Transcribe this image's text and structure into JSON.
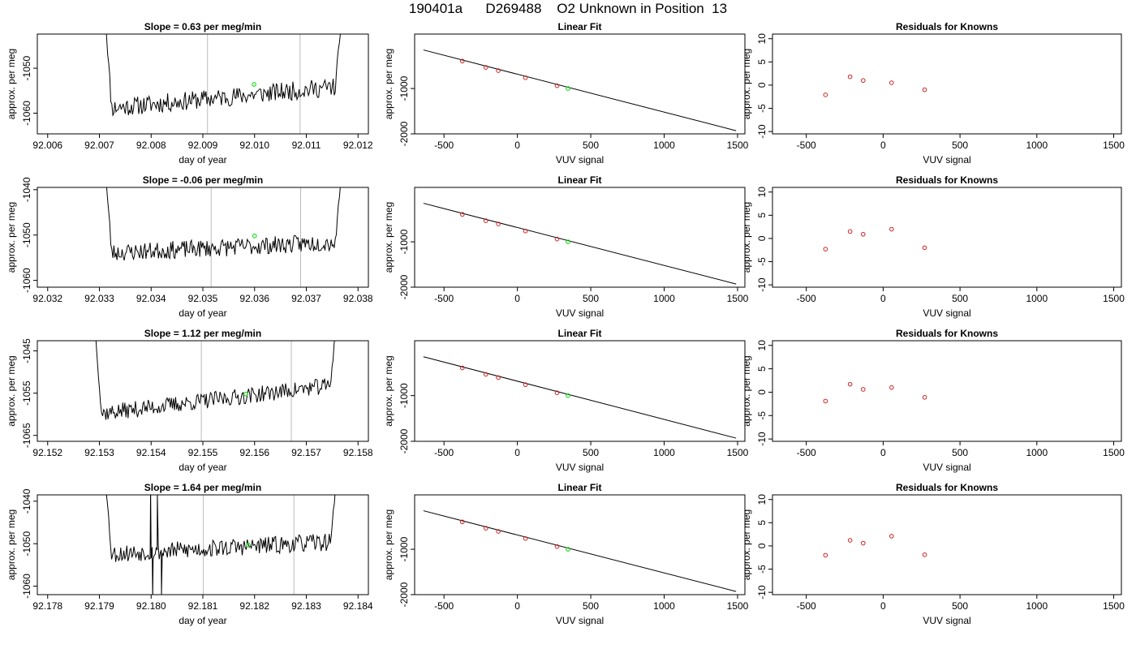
{
  "figure": {
    "title": "190401a      D269488    O2 Unknown in Position  13"
  },
  "chart_data": [
    {
      "type": "line",
      "panel": "time-series",
      "row": 1,
      "title": "Slope =  0.63  per meg/min",
      "xlabel": "day of year",
      "ylabel": "approx. per meg",
      "xlim": [
        92.0058,
        92.0122
      ],
      "ylim": [
        -1064.6,
        -1042.4
      ],
      "xticks": [
        92.006,
        92.007,
        92.008,
        92.009,
        92.01,
        92.011,
        92.012
      ],
      "xtick_labels": [
        "92.006",
        "92.007",
        "92.008",
        "92.009",
        "92.010",
        "92.011",
        "92.012"
      ],
      "yticks": [
        -1060,
        -1050
      ],
      "ytick_labels": [
        "-1060",
        "-1050"
      ],
      "t_start": 92.0071,
      "t_end": 92.0117,
      "baseline_start": -1059,
      "baseline_end": -1054,
      "noise": 1.6,
      "vlines": [
        92.00909,
        92.01088
      ],
      "marker": {
        "x": 92.00999,
        "y": -1053.6
      },
      "seed": 11
    },
    {
      "type": "scatter",
      "panel": "linear-fit",
      "row": 1,
      "title": "Linear Fit",
      "xlabel": "VUV signal",
      "ylabel": "approx. per meg",
      "xlim": [
        -700,
        1550
      ],
      "ylim": [
        -2000,
        200
      ],
      "xticks": [
        -500,
        0,
        500,
        1000,
        1500
      ],
      "yticks": [
        -2000,
        -1000
      ],
      "ytick_labels": [
        "-2000",
        "-1000"
      ],
      "line": {
        "x": [
          -640,
          1490
        ],
        "y": [
          -150,
          -1930
        ]
      },
      "standards_x": [
        -375,
        -215,
        -130,
        55,
        270
      ],
      "standards_y": [
        -395,
        -535,
        -606,
        -762,
        -939
      ],
      "unknown": {
        "x": 345,
        "y": -1000
      }
    },
    {
      "type": "scatter",
      "panel": "residuals",
      "row": 1,
      "title": "Residuals for Knowns",
      "xlabel": "VUV signal",
      "ylabel": "approx. per meg",
      "xlim": [
        -720,
        1550
      ],
      "ylim": [
        -10.5,
        11
      ],
      "xticks": [
        -500,
        0,
        500,
        1000,
        1500
      ],
      "yticks": [
        -10,
        -5,
        0,
        5,
        10
      ],
      "x": [
        -375,
        -215,
        -130,
        55,
        270
      ],
      "y": [
        -2.1,
        1.8,
        1.0,
        0.5,
        -1.0
      ]
    },
    {
      "type": "line",
      "panel": "time-series",
      "row": 2,
      "title": "Slope =  -0.06  per meg/min",
      "xlabel": "day of year",
      "ylabel": "approx. per meg",
      "xlim": [
        92.0318,
        92.0382
      ],
      "ylim": [
        -1061.5,
        -1039.5
      ],
      "xticks": [
        92.032,
        92.033,
        92.034,
        92.035,
        92.036,
        92.037,
        92.038
      ],
      "xtick_labels": [
        "92.032",
        "92.033",
        "92.034",
        "92.035",
        "92.036",
        "92.037",
        "92.038"
      ],
      "yticks": [
        -1060,
        -1050,
        -1040
      ],
      "ytick_labels": [
        "-1060",
        "-1050",
        "-1040"
      ],
      "t_start": 92.0331,
      "t_end": 92.0377,
      "baseline_start": -1054,
      "baseline_end": -1051.5,
      "noise": 1.5,
      "vlines": [
        92.03516,
        92.03689
      ],
      "marker": {
        "x": 92.036,
        "y": -1050.2
      },
      "seed": 23
    },
    {
      "type": "scatter",
      "panel": "linear-fit",
      "row": 2,
      "title": "Linear Fit",
      "xlabel": "VUV signal",
      "ylabel": "approx. per meg",
      "xlim": [
        -700,
        1550
      ],
      "ylim": [
        -2000,
        200
      ],
      "xticks": [
        -500,
        0,
        500,
        1000,
        1500
      ],
      "yticks": [
        -2000,
        -1000
      ],
      "ytick_labels": [
        "-2000",
        "-1000"
      ],
      "line": {
        "x": [
          -640,
          1490
        ],
        "y": [
          -150,
          -1930
        ]
      },
      "standards_x": [
        -375,
        -215,
        -130,
        55,
        270
      ],
      "standards_y": [
        -395,
        -535,
        -606,
        -762,
        -939
      ],
      "unknown": {
        "x": 345,
        "y": -1000
      }
    },
    {
      "type": "scatter",
      "panel": "residuals",
      "row": 2,
      "title": "Residuals for Knowns",
      "xlabel": "VUV signal",
      "ylabel": "approx. per meg",
      "xlim": [
        -720,
        1550
      ],
      "ylim": [
        -10.5,
        11
      ],
      "xticks": [
        -500,
        0,
        500,
        1000,
        1500
      ],
      "yticks": [
        -10,
        -5,
        0,
        5,
        10
      ],
      "x": [
        -375,
        -215,
        -130,
        55,
        270
      ],
      "y": [
        -2.3,
        1.5,
        0.9,
        2.0,
        -2.0
      ]
    },
    {
      "type": "line",
      "panel": "time-series",
      "row": 3,
      "title": "Slope =  1.12  per meg/min",
      "xlabel": "day of year",
      "ylabel": "approx. per meg",
      "xlim": [
        92.1518,
        92.1582
      ],
      "ylim": [
        -1066.4,
        -1042.6
      ],
      "xticks": [
        92.152,
        92.153,
        92.154,
        92.155,
        92.156,
        92.157,
        92.158
      ],
      "xtick_labels": [
        "92.152",
        "92.153",
        "92.154",
        "92.155",
        "92.156",
        "92.157",
        "92.158"
      ],
      "yticks": [
        -1065,
        -1055,
        -1045
      ],
      "ytick_labels": [
        "-1065",
        "-1055",
        "-1045"
      ],
      "t_start": 92.1529,
      "t_end": 92.1576,
      "baseline_start": -1060,
      "baseline_end": -1053,
      "noise": 1.5,
      "vlines": [
        92.15497,
        92.15671
      ],
      "marker": {
        "x": 92.15583,
        "y": -1055.2
      },
      "seed": 37
    },
    {
      "type": "scatter",
      "panel": "linear-fit",
      "row": 3,
      "title": "Linear Fit",
      "xlabel": "VUV signal",
      "ylabel": "approx. per meg",
      "xlim": [
        -700,
        1550
      ],
      "ylim": [
        -2000,
        200
      ],
      "xticks": [
        -500,
        0,
        500,
        1000,
        1500
      ],
      "yticks": [
        -2000,
        -1000
      ],
      "ytick_labels": [
        "-2000",
        "-1000"
      ],
      "line": {
        "x": [
          -640,
          1490
        ],
        "y": [
          -150,
          -1930
        ]
      },
      "standards_x": [
        -375,
        -215,
        -130,
        55,
        270
      ],
      "standards_y": [
        -395,
        -535,
        -606,
        -762,
        -939
      ],
      "unknown": {
        "x": 345,
        "y": -1000
      }
    },
    {
      "type": "scatter",
      "panel": "residuals",
      "row": 3,
      "title": "Residuals for Knowns",
      "xlabel": "VUV signal",
      "ylabel": "approx. per meg",
      "xlim": [
        -720,
        1550
      ],
      "ylim": [
        -10.5,
        11
      ],
      "xticks": [
        -500,
        0,
        500,
        1000,
        1500
      ],
      "yticks": [
        -10,
        -5,
        0,
        5,
        10
      ],
      "x": [
        -375,
        -215,
        -130,
        55,
        270
      ],
      "y": [
        -1.9,
        1.7,
        0.6,
        1.0,
        -1.1
      ]
    },
    {
      "type": "line",
      "panel": "time-series",
      "row": 4,
      "title": "Slope =  1.64  per meg/min",
      "xlabel": "day of year",
      "ylabel": "approx. per meg",
      "xlim": [
        92.1778,
        92.1842
      ],
      "ylim": [
        -1062,
        -1038.5
      ],
      "xticks": [
        92.178,
        92.179,
        92.18,
        92.181,
        92.182,
        92.183,
        92.184
      ],
      "xtick_labels": [
        "92.178",
        "92.179",
        "92.180",
        "92.181",
        "92.182",
        "92.183",
        "92.184"
      ],
      "yticks": [
        -1060,
        -1050,
        -1040
      ],
      "ytick_labels": [
        "-1060",
        "-1050",
        "-1040"
      ],
      "t_start": 92.1791,
      "t_end": 92.1836,
      "baseline_start": -1052.5,
      "baseline_end": -1049.5,
      "noise": 1.6,
      "vlines": [
        92.18101,
        92.18276
      ],
      "marker": {
        "x": 92.18188,
        "y": -1050.3
      },
      "spikes": [
        {
          "x": 92.17999,
          "y": -1037
        },
        {
          "x": 92.18003,
          "y": -1063
        },
        {
          "x": 92.18012,
          "y": -1038
        },
        {
          "x": 92.1802,
          "y": -1062
        }
      ],
      "seed": 53
    },
    {
      "type": "scatter",
      "panel": "linear-fit",
      "row": 4,
      "title": "Linear Fit",
      "xlabel": "VUV signal",
      "ylabel": "approx. per meg",
      "xlim": [
        -700,
        1550
      ],
      "ylim": [
        -2000,
        200
      ],
      "xticks": [
        -500,
        0,
        500,
        1000,
        1500
      ],
      "yticks": [
        -2000,
        -1000
      ],
      "ytick_labels": [
        "-2000",
        "-1000"
      ],
      "line": {
        "x": [
          -640,
          1490
        ],
        "y": [
          -150,
          -1930
        ]
      },
      "standards_x": [
        -375,
        -215,
        -130,
        55,
        270
      ],
      "standards_y": [
        -395,
        -535,
        -606,
        -762,
        -939
      ],
      "unknown": {
        "x": 345,
        "y": -1000
      }
    },
    {
      "type": "scatter",
      "panel": "residuals",
      "row": 4,
      "title": "Residuals for Knowns",
      "xlabel": "VUV signal",
      "ylabel": "approx. per meg",
      "xlim": [
        -720,
        1550
      ],
      "ylim": [
        -10.5,
        11
      ],
      "xticks": [
        -500,
        0,
        500,
        1000,
        1500
      ],
      "yticks": [
        -10,
        -5,
        0,
        5,
        10
      ],
      "x": [
        -375,
        -215,
        -130,
        55,
        270
      ],
      "y": [
        -2.0,
        1.2,
        0.6,
        2.1,
        -1.9
      ]
    }
  ]
}
